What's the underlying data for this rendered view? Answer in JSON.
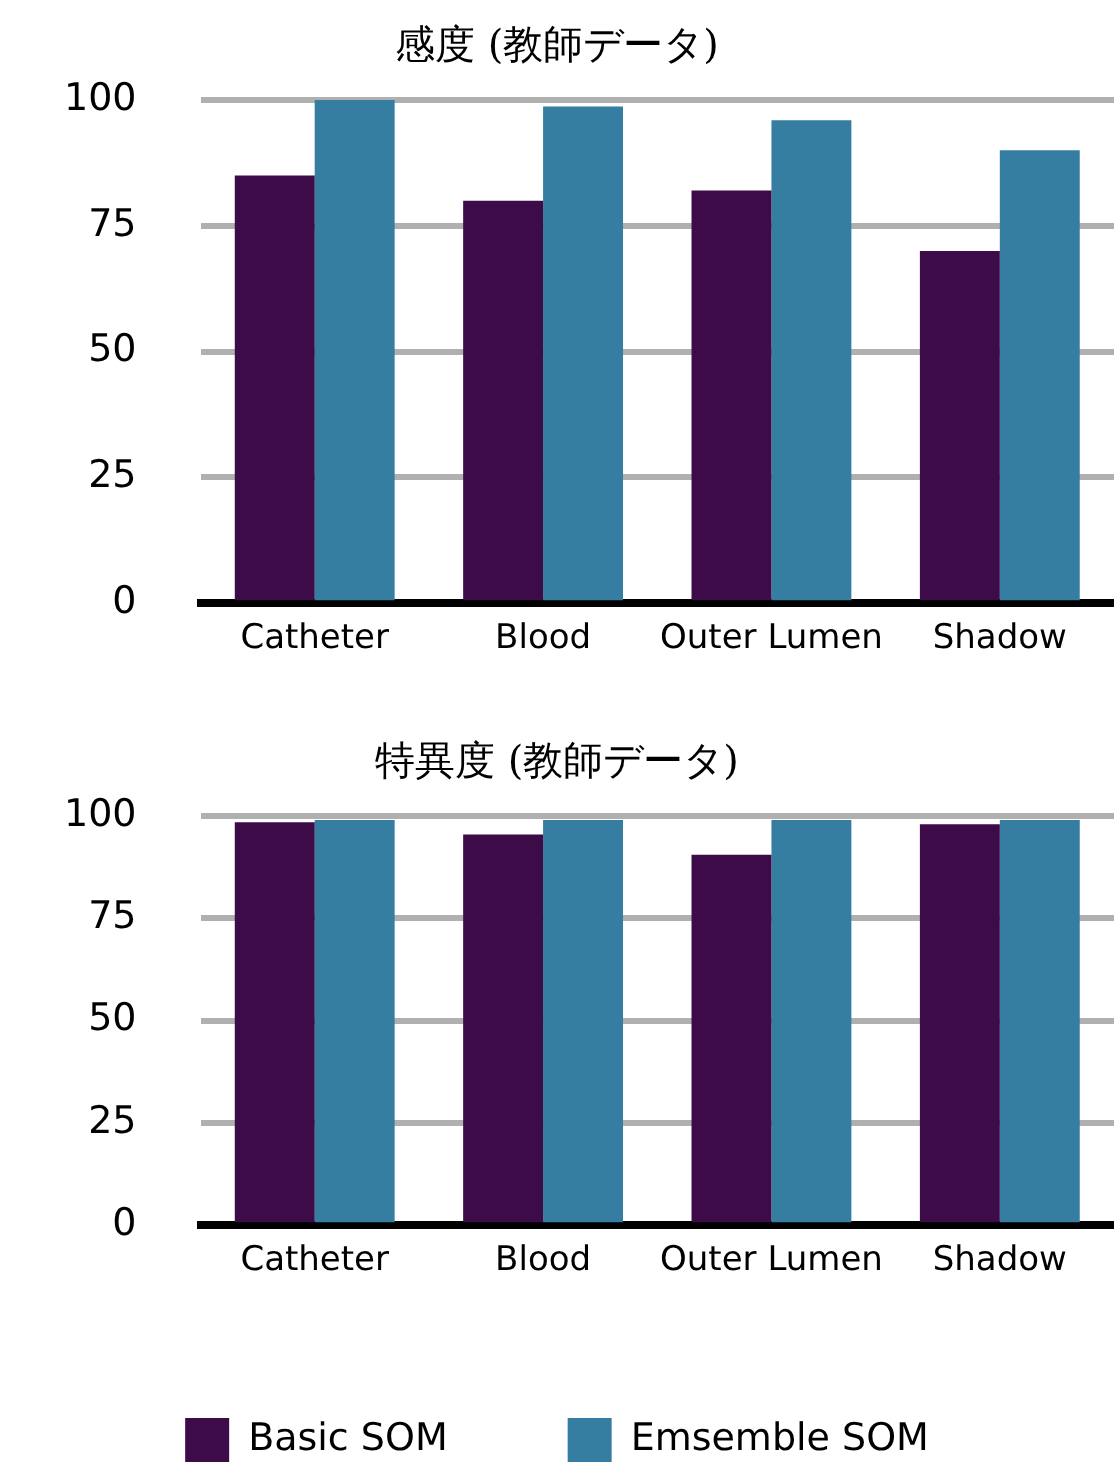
{
  "chart_data": [
    {
      "type": "bar",
      "title": "感度 (教師データ)",
      "categories": [
        "Catheter",
        "Blood",
        "Outer Lumen",
        "Shadow"
      ],
      "series": [
        {
          "color": "#3d0b48",
          "values": [
            85,
            80,
            82,
            70
          ]
        },
        {
          "color": "#357ea2",
          "values": [
            100,
            98.7,
            96,
            90
          ]
        }
      ],
      "ylim": [
        0,
        100
      ],
      "yticks": [
        0,
        25,
        50,
        75,
        100
      ],
      "grid": "y",
      "legend": false
    },
    {
      "type": "bar",
      "title": "特異度 (教師データ)",
      "categories": [
        "Catheter",
        "Blood",
        "Outer Lumen",
        "Shadow"
      ],
      "series": [
        {
          "name": "Basic SOM",
          "color": "#3d0b48",
          "values": [
            98.5,
            95.5,
            90.5,
            98
          ]
        },
        {
          "name": "Emsemble SOM",
          "color": "#357ea2",
          "values": [
            99,
            99,
            99,
            99
          ]
        }
      ],
      "ylim": [
        0,
        100
      ],
      "yticks": [
        0,
        25,
        50,
        75,
        100
      ],
      "grid": "y",
      "legend": "bottom"
    }
  ]
}
